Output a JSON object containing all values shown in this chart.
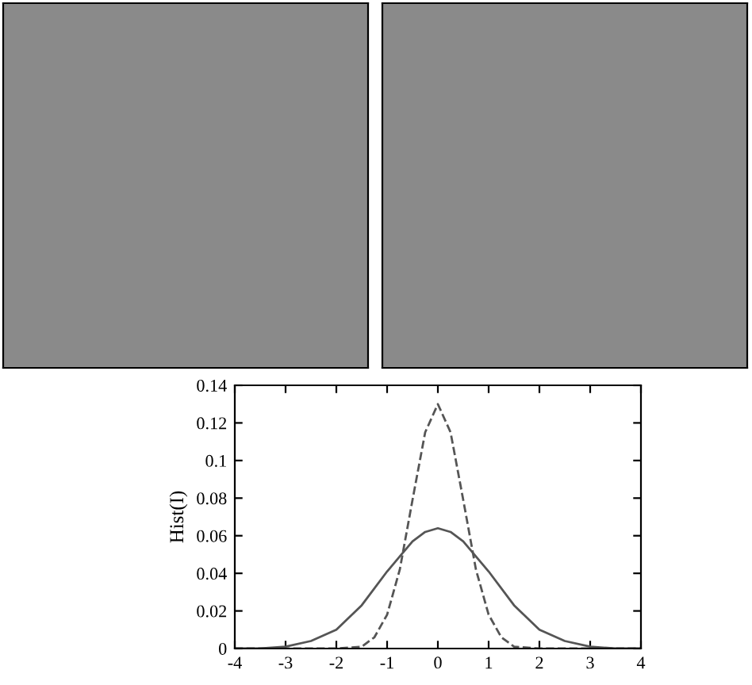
{
  "chart_data": {
    "type": "line",
    "ylabel": "Hist(I)",
    "xlim": [
      -4,
      4
    ],
    "ylim": [
      0,
      0.14
    ],
    "xticks": [
      -4,
      -3,
      -2,
      -1,
      0,
      1,
      2,
      3,
      4
    ],
    "yticks": [
      0,
      0.02,
      0.04,
      0.06,
      0.08,
      0.1,
      0.12,
      0.14
    ],
    "grid": false,
    "legend": false,
    "series": [
      {
        "color": "#555555",
        "line_style": "solid",
        "x": [
          -4,
          -3.5,
          -3,
          -2.5,
          -2,
          -1.5,
          -1,
          -0.5,
          -0.25,
          0,
          0.25,
          0.5,
          1,
          1.5,
          2,
          2.5,
          3,
          3.5,
          4
        ],
        "values": [
          0,
          0,
          0.001,
          0.004,
          0.01,
          0.023,
          0.041,
          0.057,
          0.062,
          0.064,
          0.062,
          0.057,
          0.041,
          0.023,
          0.01,
          0.004,
          0.001,
          0,
          0
        ]
      },
      {
        "color": "#555555",
        "line_style": "dashed",
        "x": [
          -4,
          -2,
          -1.5,
          -1.25,
          -1,
          -0.75,
          -0.5,
          -0.25,
          0,
          0.25,
          0.5,
          0.75,
          1,
          1.25,
          1.5,
          2,
          4
        ],
        "values": [
          0,
          0,
          0.001,
          0.006,
          0.018,
          0.042,
          0.079,
          0.115,
          0.13,
          0.115,
          0.079,
          0.042,
          0.018,
          0.006,
          0.001,
          0,
          0
        ]
      }
    ]
  }
}
